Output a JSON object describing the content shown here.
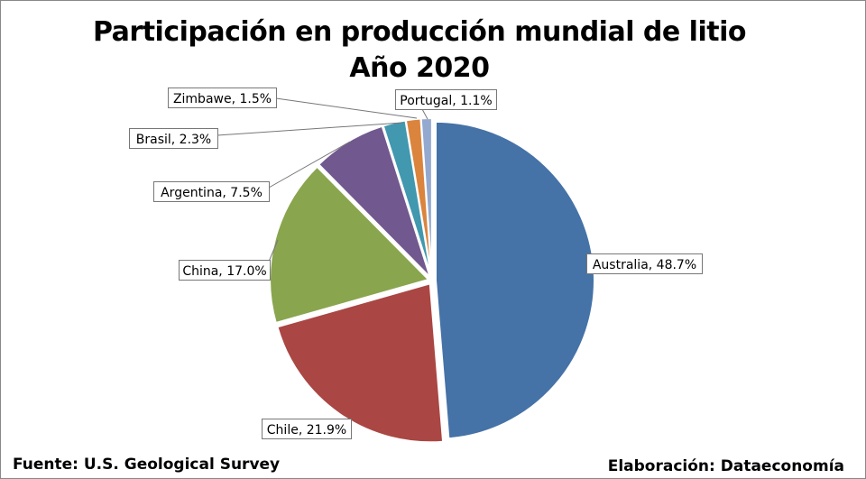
{
  "chart_data": {
    "type": "pie",
    "title": "Participación en producción mundial de litio",
    "subtitle": "Año 2020",
    "slices": [
      {
        "label": "Australia",
        "value": 48.7,
        "text": "Australia, 48.7%",
        "color": "#4572A7"
      },
      {
        "label": "Chile",
        "value": 21.9,
        "text": "Chile, 21.9%",
        "color": "#AA4643"
      },
      {
        "label": "China",
        "value": 17.0,
        "text": "China, 17.0%",
        "color": "#89A54E"
      },
      {
        "label": "Argentina",
        "value": 7.5,
        "text": "Argentina, 7.5%",
        "color": "#71588F"
      },
      {
        "label": "Brasil",
        "value": 2.3,
        "text": "Brasil, 2.3%",
        "color": "#4198AF"
      },
      {
        "label": "Zimbawe",
        "value": 1.5,
        "text": "Zimbawe, 1.5%",
        "color": "#DB843D"
      },
      {
        "label": "Portugal",
        "value": 1.1,
        "text": "Portugal, 1.1%",
        "color": "#93A9CF"
      }
    ]
  },
  "footer": {
    "source": "Fuente: U.S. Geological Survey",
    "credit": "Elaboración: Dataeconomía"
  }
}
